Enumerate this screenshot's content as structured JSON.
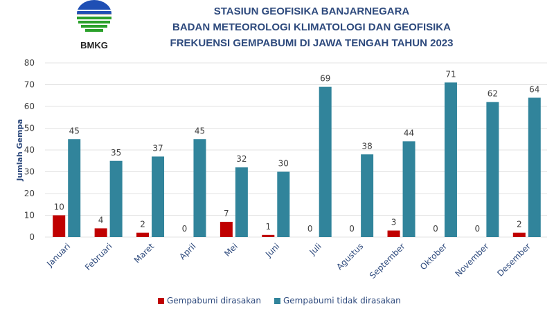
{
  "header": {
    "logo_text": "BMKG",
    "title_lines": [
      "STASIUN GEOFISIKA BANJARNEGARA",
      "BADAN METEOROLOGI KLIMATOLOGI DAN GEOFISIKA",
      "FREKUENSI GEMPABUMI DI JAWA TENGAH TAHUN 2023"
    ]
  },
  "chart_data": {
    "type": "bar",
    "title": "FREKUENSI GEMPABUMI DI JAWA TENGAH TAHUN 2023",
    "xlabel": "",
    "ylabel": "Jumlah Gempa",
    "ylim": [
      0,
      80
    ],
    "yticks": [
      0,
      10,
      20,
      30,
      40,
      50,
      60,
      70,
      80
    ],
    "grid": true,
    "legend_position": "bottom",
    "categories": [
      "Januari",
      "Februari",
      "Maret",
      "April",
      "Mei",
      "Juni",
      "Juli",
      "Agustus",
      "September",
      "Oktober",
      "November",
      "Desember"
    ],
    "series": [
      {
        "name": "Gempabumi dirasakan",
        "color": "#c00000",
        "values": [
          10,
          4,
          2,
          0,
          7,
          1,
          0,
          0,
          3,
          0,
          0,
          2
        ]
      },
      {
        "name": "Gempabumi tidak dirasakan",
        "color": "#31849b",
        "values": [
          45,
          35,
          37,
          45,
          32,
          30,
          69,
          38,
          44,
          71,
          62,
          64
        ]
      }
    ]
  }
}
